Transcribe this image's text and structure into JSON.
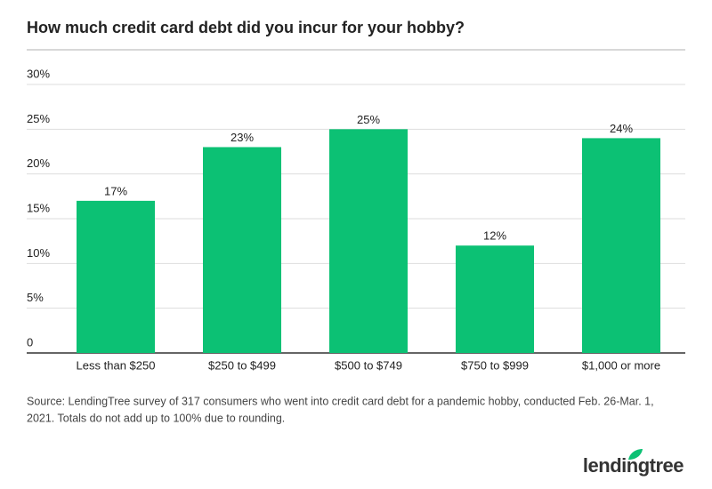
{
  "chart_data": {
    "type": "bar",
    "title": "How much credit card debt did you incur for your hobby?",
    "categories": [
      "Less than $250",
      "$250 to $499",
      "$500 to $749",
      "$750 to $999",
      "$1,000 or more"
    ],
    "values": [
      17,
      23,
      25,
      12,
      24
    ],
    "value_labels": [
      "17%",
      "23%",
      "25%",
      "12%",
      "24%"
    ],
    "color": "#0cc174",
    "ylim": [
      0,
      30
    ],
    "yticks": [
      0,
      {
        "value": 5,
        "label": "5%"
      },
      {
        "value": 10,
        "label": "10%"
      },
      {
        "value": 15,
        "label": "15%"
      },
      {
        "value": 20,
        "label": "20%"
      },
      {
        "value": 25,
        "label": "25%"
      },
      {
        "value": 30,
        "label": "30%"
      }
    ],
    "grid": true,
    "source": [
      "Source: LendingTree survey of 317 consumers who went into credit card debt for a pandemic hobby, conducted Feb. 26-Mar. 1,",
      "2021. Totals do not add up to 100% due to rounding."
    ],
    "logo": "lendingtree"
  }
}
